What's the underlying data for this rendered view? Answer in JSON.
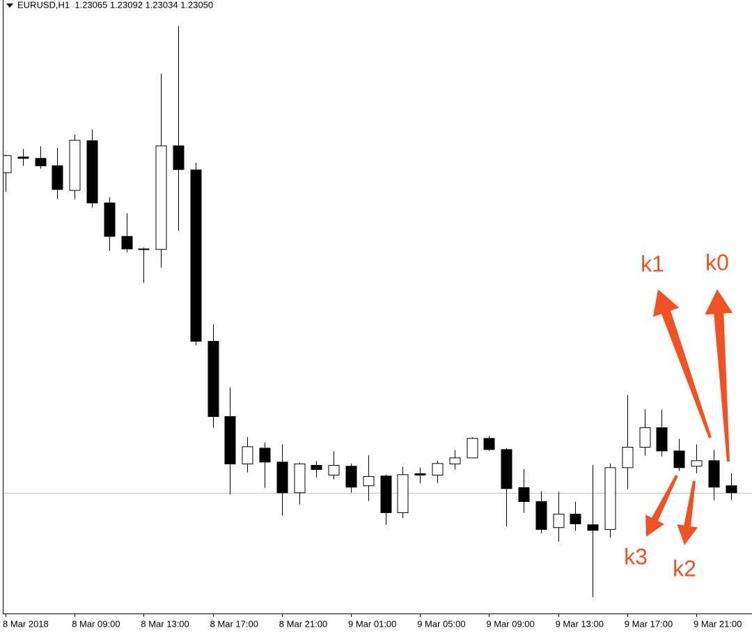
{
  "chart_data": {
    "type": "candlestick",
    "title": "EURUSD,H1  1.23065 1.23092 1.23034 1.23050",
    "categories": [
      "8 Mar 2018",
      null,
      null,
      null,
      "8 Mar 09:00",
      null,
      null,
      null,
      "8 Mar 13:00",
      null,
      null,
      null,
      "8 Mar 17:00",
      null,
      null,
      null,
      "8 Mar 21:00",
      null,
      null,
      null,
      "9 Mar 01:00",
      null,
      null,
      null,
      "9 Mar 05:00",
      null,
      null,
      null,
      "9 Mar 09:00",
      null,
      null,
      null,
      "9 Mar 13:00",
      null,
      null,
      null,
      "9 Mar 17:00",
      null,
      null,
      null,
      "9 Mar 21:00",
      null,
      null
    ],
    "open": [
      1.23739,
      1.23773,
      1.2377,
      1.23754,
      1.23701,
      1.23808,
      1.23674,
      1.23602,
      1.23575,
      1.23574,
      1.23797,
      1.23745,
      1.23376,
      1.23214,
      1.23112,
      1.23146,
      1.23116,
      1.2305,
      1.23109,
      1.23088,
      1.23107,
      1.23065,
      1.23086,
      1.23007,
      1.23091,
      1.23088,
      1.23112,
      1.23125,
      1.23167,
      1.23143,
      1.23061,
      1.23031,
      1.22975,
      1.23004,
      1.22981,
      1.22971,
      1.23104,
      1.23148,
      1.2319,
      1.2314,
      1.23107,
      1.23119,
      1.23065
    ],
    "high": [
      1.23778,
      1.2379,
      1.23796,
      1.23793,
      1.23821,
      1.23832,
      1.23686,
      1.23652,
      1.23578,
      1.23952,
      1.24055,
      1.23761,
      1.23412,
      1.23277,
      1.2317,
      1.23158,
      1.23154,
      1.23115,
      1.23118,
      1.23139,
      1.23113,
      1.23131,
      1.23089,
      1.23106,
      1.23104,
      1.23119,
      1.23142,
      1.2317,
      1.23172,
      1.23146,
      1.23101,
      1.23053,
      1.23052,
      1.23031,
      1.2311,
      1.23113,
      1.2326,
      1.2323,
      1.23229,
      1.23166,
      1.23154,
      1.23142,
      1.23092
    ],
    "low": [
      1.23698,
      1.23754,
      1.23748,
      1.23682,
      1.23682,
      1.23664,
      1.23571,
      1.23568,
      1.23502,
      1.23535,
      1.23614,
      1.23368,
      1.2319,
      1.23046,
      1.23094,
      1.23061,
      1.23001,
      1.23025,
      1.23083,
      1.23079,
      1.2305,
      1.23032,
      1.22981,
      1.22995,
      1.2307,
      1.23071,
      1.231,
      1.23124,
      1.2314,
      1.22977,
      1.23007,
      1.22963,
      1.22945,
      1.22968,
      1.22825,
      1.22953,
      1.23058,
      1.2313,
      1.23128,
      1.23097,
      1.23092,
      1.23034,
      1.23034
    ],
    "close": [
      1.23776,
      1.2377,
      1.23754,
      1.23703,
      1.23809,
      1.23674,
      1.23602,
      1.23575,
      1.23574,
      1.23797,
      1.23746,
      1.23376,
      1.23214,
      1.23112,
      1.23149,
      1.23116,
      1.2305,
      1.23112,
      1.231,
      1.23109,
      1.23062,
      1.23085,
      1.23007,
      1.23089,
      1.23088,
      1.23113,
      1.23125,
      1.23167,
      1.23143,
      1.23059,
      1.23031,
      1.22971,
      1.23004,
      1.22983,
      1.22969,
      1.23104,
      1.23148,
      1.2319,
      1.2314,
      1.23104,
      1.23119,
      1.23062,
      1.2305
    ],
    "up_color": "#ffffff",
    "down_color": "#000000",
    "price_line": 1.2305,
    "ylim": [
      1.2279,
      1.24111
    ],
    "annotations": [
      "k1",
      "k0",
      "k3",
      "k2"
    ]
  }
}
